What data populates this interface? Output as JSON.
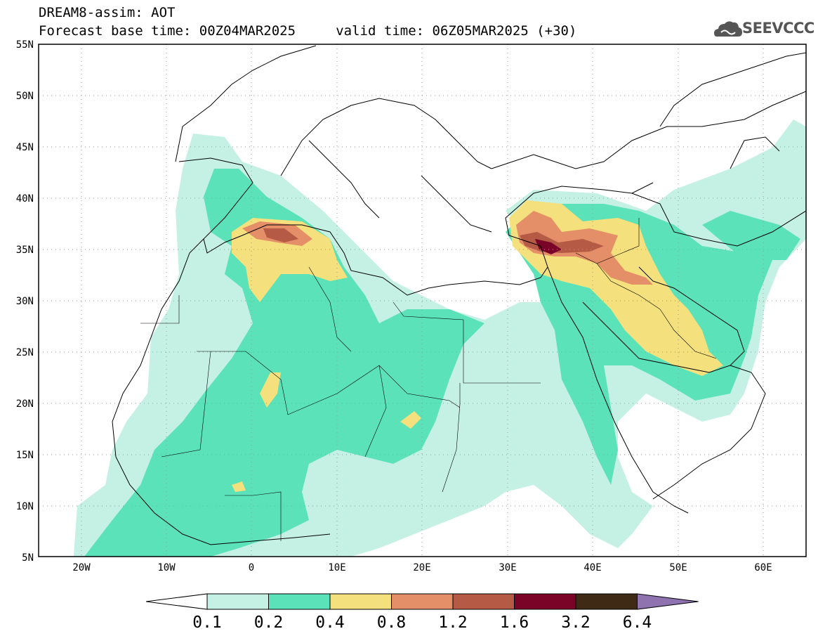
{
  "title": {
    "line1": "DREAM8-assim: AOT",
    "line2": "Forecast base time: 00Z04MAR2025     valid time: 06Z05MAR2025 (+30)"
  },
  "logo": {
    "text": "SEEVCCC",
    "icon": "cloud-logo-icon",
    "color": "#555555"
  },
  "map": {
    "lat_range": [
      5,
      55
    ],
    "lon_range": [
      -25,
      65
    ],
    "lat_ticks": [
      "55N",
      "50N",
      "45N",
      "40N",
      "35N",
      "30N",
      "25N",
      "20N",
      "15N",
      "10N",
      "5N"
    ],
    "lon_ticks": [
      "20W",
      "10W",
      "0",
      "10E",
      "20E",
      "30E",
      "40E",
      "50E",
      "60E"
    ],
    "gridlines": true
  },
  "colorbar": {
    "levels": [
      "0.1",
      "0.2",
      "0.4",
      "0.8",
      "1.2",
      "1.6",
      "3.2",
      "6.4"
    ],
    "colors": [
      "#ffffff",
      "#c5f1e5",
      "#5ce2b8",
      "#f4e07c",
      "#e58f68",
      "#b55a45",
      "#7a0428",
      "#3e2a15",
      "#8f72b0"
    ]
  }
}
